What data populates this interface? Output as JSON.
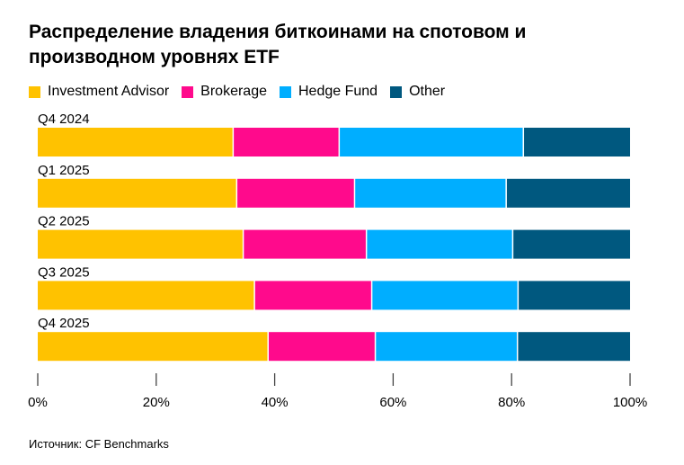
{
  "chart_data": {
    "type": "bar",
    "orientation": "horizontal-stacked",
    "title": "Распределение владения биткоинами на спотовом и производном уровнях ETF",
    "categories": [
      "Q4 2024",
      "Q1 2025",
      "Q2 2025",
      "Q3 2025",
      "Q4 2025"
    ],
    "series": [
      {
        "name": "Investment Advisor",
        "color": "#FFC200",
        "values": [
          33.1,
          33.7,
          34.8,
          36.7,
          39.0
        ]
      },
      {
        "name": "Brokerage",
        "color": "#FF0A8C",
        "values": [
          17.9,
          19.9,
          20.8,
          19.8,
          18.1
        ]
      },
      {
        "name": "Hedge Fund",
        "color": "#00AEFF",
        "values": [
          31.1,
          25.6,
          24.7,
          24.7,
          24.0
        ]
      },
      {
        "name": "Other",
        "color": "#00587F",
        "values": [
          17.9,
          20.8,
          19.7,
          18.8,
          18.9
        ]
      }
    ],
    "xlim": [
      0,
      100
    ],
    "xticks": [
      "0%",
      "20%",
      "40%",
      "60%",
      "80%",
      "100%"
    ],
    "legend_position": "top-left",
    "grid": false
  },
  "source": "Источник: CF Benchmarks"
}
